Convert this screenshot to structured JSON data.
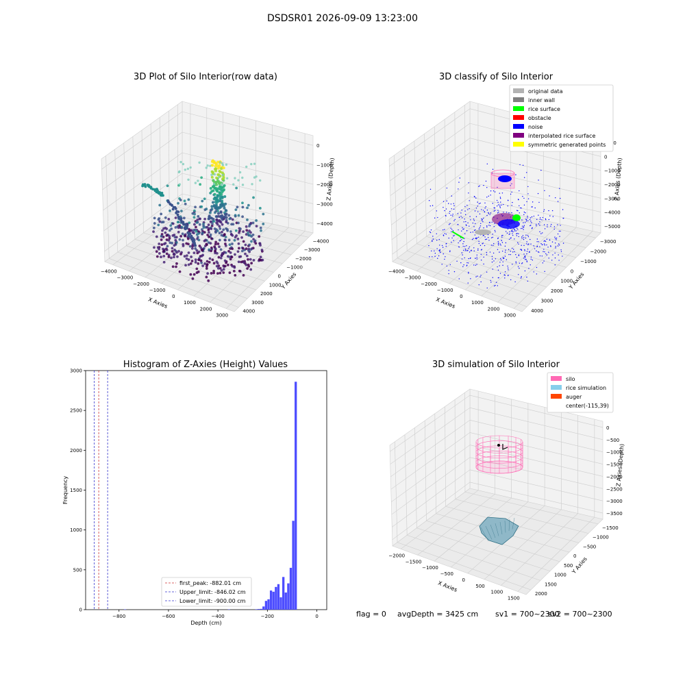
{
  "figure": {
    "title": "DSDSR01 2026-09-09 13:23:00",
    "footer": {
      "flag": "flag = 0",
      "avg": "avgDepth = 3425 cm",
      "sv1": "sv1 = 700~2300",
      "sv2": "sv2 = 700~2300"
    }
  },
  "chart_data": [
    {
      "type": "scatter",
      "subtype": "3d",
      "title": "3D Plot of Silo Interior(row data)",
      "xlabel": "X Axies",
      "ylabel": "Y Axies",
      "zlabel": "Z Axies (Depth)",
      "x_ticks": [
        "−4000",
        "−3000",
        "−2000",
        "−1000",
        "0",
        "1000",
        "2000",
        "3000"
      ],
      "y_ticks": [
        "−4000",
        "−3000",
        "−2000",
        "−1000",
        "0",
        "1000",
        "2000",
        "3000",
        "4000"
      ],
      "z_ticks": [
        "0",
        "−1000",
        "−2000",
        "−3000",
        "−4000"
      ],
      "colormap": "viridis",
      "grid": true
    },
    {
      "type": "scatter",
      "subtype": "3d",
      "title": "3D classify of Silo Interior",
      "xlabel": "X Axies",
      "ylabel": "Y Axies",
      "zlabel": "Z Axies (Depth)",
      "x_ticks": [
        "−4000",
        "−3000",
        "−2000",
        "−1000",
        "0",
        "1000",
        "2000",
        "3000"
      ],
      "y_ticks": [
        "−3000",
        "−2000",
        "−1000",
        "0",
        "1000",
        "2000",
        "3000",
        "4000"
      ],
      "z_ticks": [
        "1000",
        "0",
        "−1000",
        "−2000",
        "−3000",
        "−4000",
        "−5000"
      ],
      "legend": [
        {
          "label": "original data",
          "color": "#b3b3b3"
        },
        {
          "label": "inner wall",
          "color": "#808080"
        },
        {
          "label": "rice surface",
          "color": "#00ff00"
        },
        {
          "label": "obstacle",
          "color": "#ff0000"
        },
        {
          "label": "noise",
          "color": "#0000ff"
        },
        {
          "label": "interpolated rice surface",
          "color": "#800080"
        },
        {
          "label": "symmetric generated points",
          "color": "#ffff00"
        }
      ],
      "legend_position": "top-right",
      "grid": true
    },
    {
      "type": "bar",
      "subtype": "histogram",
      "title": "Histogram of Z-Axies (Height) Values",
      "xlabel": "Depth (cm)",
      "ylabel": "Frequency",
      "xlim": [
        -935,
        40
      ],
      "ylim": [
        0,
        3000
      ],
      "x_ticks": [
        -800,
        -600,
        -400,
        -200,
        0
      ],
      "y_ticks": [
        0,
        500,
        1000,
        1500,
        2000,
        2500,
        3000
      ],
      "bin_width": 10,
      "bins": [
        {
          "x": -775,
          "count": 4
        },
        {
          "x": -355,
          "count": 4
        },
        {
          "x": -245,
          "count": 5
        },
        {
          "x": -235,
          "count": 8
        },
        {
          "x": -225,
          "count": 10
        },
        {
          "x": -215,
          "count": 40
        },
        {
          "x": -205,
          "count": 110
        },
        {
          "x": -195,
          "count": 130
        },
        {
          "x": -185,
          "count": 240
        },
        {
          "x": -175,
          "count": 225
        },
        {
          "x": -165,
          "count": 285
        },
        {
          "x": -155,
          "count": 320
        },
        {
          "x": -145,
          "count": 155
        },
        {
          "x": -135,
          "count": 410
        },
        {
          "x": -125,
          "count": 215
        },
        {
          "x": -115,
          "count": 330
        },
        {
          "x": -105,
          "count": 525
        },
        {
          "x": -95,
          "count": 1115
        },
        {
          "x": -85,
          "count": 2860
        }
      ],
      "bar_color": "#4d4dff",
      "reference_lines": [
        {
          "label": "first_peak: -882.01 cm",
          "value": -882.01,
          "color": "#cc3333"
        },
        {
          "label": "Upper_limit: -846.02 cm",
          "value": -846.02,
          "color": "#3333cc"
        },
        {
          "label": "Lower_limit: -900.00 cm",
          "value": -900.0,
          "color": "#3333cc"
        }
      ],
      "legend_position": "lower-right",
      "grid": false
    },
    {
      "type": "scatter",
      "subtype": "3d-surface",
      "title": "3D simulation of Silo Interior",
      "xlabel": "X Axies",
      "ylabel": "Y Axies",
      "zlabel": "Z Axies (Depth)",
      "x_ticks": [
        "−2000",
        "−1500",
        "−1000",
        "−500",
        "0",
        "500",
        "1000",
        "1500"
      ],
      "y_ticks": [
        "−1500",
        "−1000",
        "−500",
        "0",
        "500",
        "1000",
        "1500",
        "2000"
      ],
      "z_ticks": [
        "0",
        "−500",
        "−1000",
        "−1500",
        "−2000",
        "−2500",
        "−3000",
        "−3500"
      ],
      "legend": [
        {
          "label": "silo",
          "color": "#ff69b4"
        },
        {
          "label": "rice simulation",
          "color": "#87ceeb"
        },
        {
          "label": "auger",
          "color": "#ff4500"
        },
        {
          "label": "center(-115,39)",
          "color": ""
        }
      ],
      "legend_position": "top-right",
      "grid": true
    }
  ]
}
